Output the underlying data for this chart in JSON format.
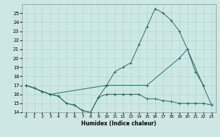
{
  "xlabel": "Humidex (Indice chaleur)",
  "background_color": "#cde8e4",
  "grid_color": "#add4ce",
  "line_color": "#1a6b5a",
  "line1_x": [
    0,
    1,
    2,
    3,
    4,
    5,
    6,
    7,
    8,
    9,
    10,
    11,
    12,
    13,
    14,
    15,
    16,
    17,
    18,
    19,
    20,
    21,
    22,
    23
  ],
  "line1_y": [
    17.0,
    16.7,
    16.3,
    16.0,
    15.8,
    15.0,
    14.8,
    14.2,
    14.0,
    15.7,
    16.0,
    16.0,
    16.0,
    16.0,
    16.0,
    15.5,
    15.5,
    15.3,
    15.2,
    15.0,
    15.0,
    15.0,
    15.0,
    14.8
  ],
  "line2_x": [
    0,
    1,
    2,
    3,
    4,
    5,
    6,
    7,
    8,
    9,
    10,
    11,
    12,
    13,
    14,
    15,
    16,
    17,
    18,
    19,
    20,
    21,
    22
  ],
  "line2_y": [
    17.0,
    16.7,
    16.3,
    16.0,
    15.8,
    15.0,
    14.8,
    14.2,
    14.0,
    15.7,
    17.0,
    18.5,
    19.0,
    19.5,
    21.5,
    23.5,
    25.5,
    25.0,
    24.2,
    23.0,
    21.0,
    18.5,
    17.0
  ],
  "line3_x": [
    0,
    3,
    10,
    15,
    19,
    20,
    23
  ],
  "line3_y": [
    17.0,
    16.0,
    17.0,
    17.0,
    20.0,
    21.0,
    14.8
  ],
  "ylim": [
    14,
    26
  ],
  "xlim": [
    -0.5,
    23.5
  ],
  "yticks": [
    14,
    15,
    16,
    17,
    18,
    19,
    20,
    21,
    22,
    23,
    24,
    25
  ],
  "xticks": [
    0,
    1,
    2,
    3,
    4,
    5,
    6,
    7,
    8,
    9,
    10,
    11,
    12,
    13,
    14,
    15,
    16,
    17,
    18,
    19,
    20,
    21,
    22,
    23
  ],
  "ytick_fontsize": 5,
  "xtick_fontsize": 4.5,
  "xlabel_fontsize": 5.5
}
